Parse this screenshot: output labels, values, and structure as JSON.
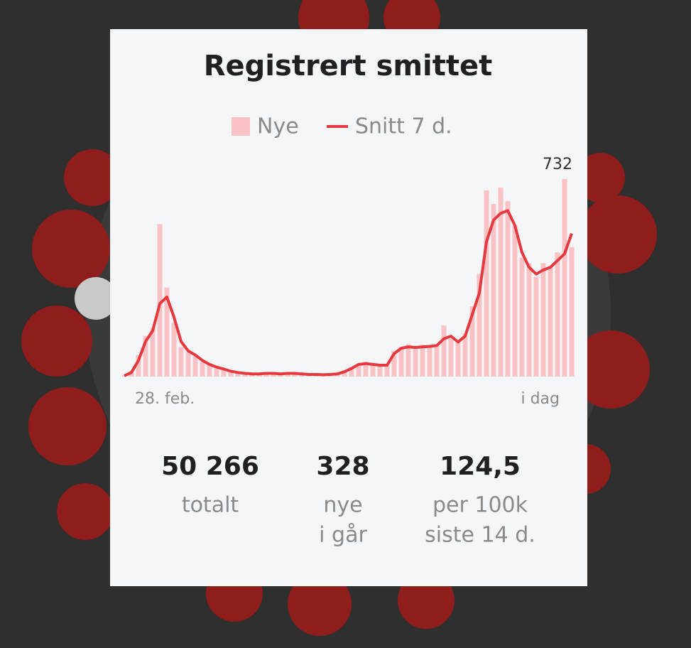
{
  "chart_data": {
    "type": "bar",
    "title": "Registrert smittet",
    "categories": [
      "28. feb.",
      null,
      null,
      null,
      null,
      null,
      null,
      null,
      null,
      null,
      null,
      null,
      null,
      null,
      null,
      null,
      null,
      null,
      null,
      null,
      null,
      null,
      null,
      null,
      null,
      null,
      null,
      null,
      null,
      null,
      null,
      null,
      null,
      null,
      null,
      null,
      null,
      null,
      null,
      null,
      null,
      null,
      null,
      null,
      null,
      null,
      null,
      null,
      null,
      null,
      null,
      null,
      null,
      null,
      null,
      null,
      null,
      null,
      null,
      null,
      null,
      null,
      null,
      "i dag"
    ],
    "series": [
      {
        "name": "Nye",
        "type": "bar",
        "color": "#f9c3c6",
        "values": [
          5,
          20,
          80,
          150,
          180,
          565,
          330,
          200,
          110,
          90,
          75,
          55,
          50,
          30,
          25,
          22,
          15,
          12,
          10,
          12,
          14,
          12,
          10,
          14,
          12,
          10,
          8,
          9,
          7,
          9,
          12,
          22,
          35,
          48,
          55,
          44,
          40,
          46,
          95,
          110,
          120,
          105,
          118,
          115,
          120,
          190,
          140,
          125,
          160,
          260,
          380,
          690,
          640,
          700,
          650,
          560,
          440,
          420,
          370,
          420,
          410,
          460,
          732,
          480
        ]
      },
      {
        "name": "Snitt 7 d.",
        "type": "line",
        "color": "#e5393e",
        "values": [
          3,
          15,
          60,
          130,
          170,
          270,
          295,
          220,
          130,
          95,
          80,
          60,
          45,
          35,
          28,
          20,
          15,
          12,
          10,
          10,
          12,
          12,
          10,
          12,
          12,
          10,
          8,
          8,
          7,
          8,
          10,
          18,
          30,
          45,
          48,
          45,
          42,
          42,
          85,
          105,
          110,
          108,
          110,
          112,
          115,
          140,
          150,
          128,
          150,
          230,
          310,
          500,
          580,
          605,
          615,
          560,
          460,
          405,
          380,
          395,
          405,
          430,
          455,
          530
        ]
      }
    ],
    "ylim": [
      0,
      732
    ],
    "stats": [
      {
        "value": "50 266",
        "label": [
          "totalt"
        ]
      },
      {
        "value": "328",
        "label": [
          "nye",
          "i går"
        ]
      },
      {
        "value": "124,5",
        "label": [
          "per 100k",
          "siste 14 d."
        ]
      }
    ]
  }
}
